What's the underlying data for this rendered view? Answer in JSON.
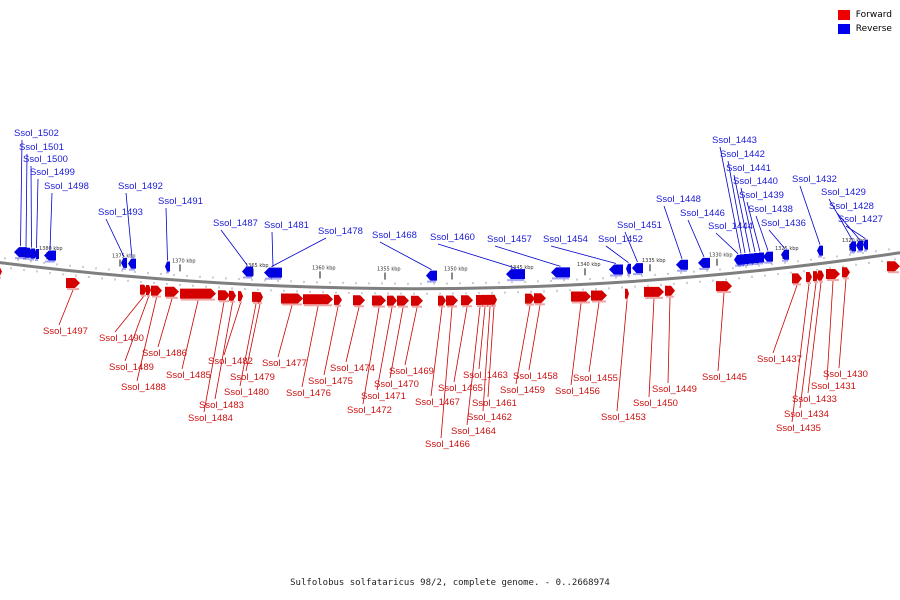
{
  "colors": {
    "forward": "#d40000",
    "reverse": "#0000e0",
    "backbone": "#7f7f7f"
  },
  "legend": [
    {
      "label": "Forward",
      "color": "#ee0000"
    },
    {
      "label": "Reverse",
      "color": "#0000ee"
    }
  ],
  "caption": "Sulfolobus solfataricus 98/2, complete genome. - 0..2668974",
  "ticks": [
    "1380 kbp",
    "1375 kbp",
    "1370 kbp",
    "1365 kbp",
    "1360 kbp",
    "1355 kbp",
    "1350 kbp",
    "1345 kbp",
    "1340 kbp",
    "1335 kbp",
    "1330 kbp",
    "1325 kbp",
    "1320 kbp"
  ],
  "reverse_genes": [
    "Ssol_1502",
    "Ssol_1501",
    "Ssol_1500",
    "Ssol_1499",
    "Ssol_1498",
    "Ssol_1492",
    "Ssol_1493",
    "Ssol_1491",
    "Ssol_1487",
    "Ssol_1481",
    "Ssol_1478",
    "Ssol_1468",
    "Ssol_1460",
    "Ssol_1457",
    "Ssol_1454",
    "Ssol_1452",
    "Ssol_1451",
    "Ssol_1448",
    "Ssol_1446",
    "Ssol_1444",
    "Ssol_1443",
    "Ssol_1442",
    "Ssol_1441",
    "Ssol_1440",
    "Ssol_1439",
    "Ssol_1438",
    "Ssol_1436",
    "Ssol_1432",
    "Ssol_1429",
    "Ssol_1428",
    "Ssol_1427"
  ],
  "forward_genes": [
    "Ssol_1497",
    "Ssol_1490",
    "Ssol_1489",
    "Ssol_1488",
    "Ssol_1486",
    "Ssol_1485",
    "Ssol_1484",
    "Ssol_1483",
    "Ssol_1482",
    "Ssol_1480",
    "Ssol_1479",
    "Ssol_1477",
    "Ssol_1476",
    "Ssol_1475",
    "Ssol_1474",
    "Ssol_1472",
    "Ssol_1471",
    "Ssol_1470",
    "Ssol_1469",
    "Ssol_1467",
    "Ssol_1466",
    "Ssol_1465",
    "Ssol_1464",
    "Ssol_1463",
    "Ssol_1462",
    "Ssol_1461",
    "Ssol_1459",
    "Ssol_1458",
    "Ssol_1456",
    "Ssol_1455",
    "Ssol_1453",
    "Ssol_1450",
    "Ssol_1449",
    "Ssol_1445",
    "Ssol_1437",
    "Ssol_1435",
    "Ssol_1434",
    "Ssol_1433",
    "Ssol_1431",
    "Ssol_1430"
  ]
}
